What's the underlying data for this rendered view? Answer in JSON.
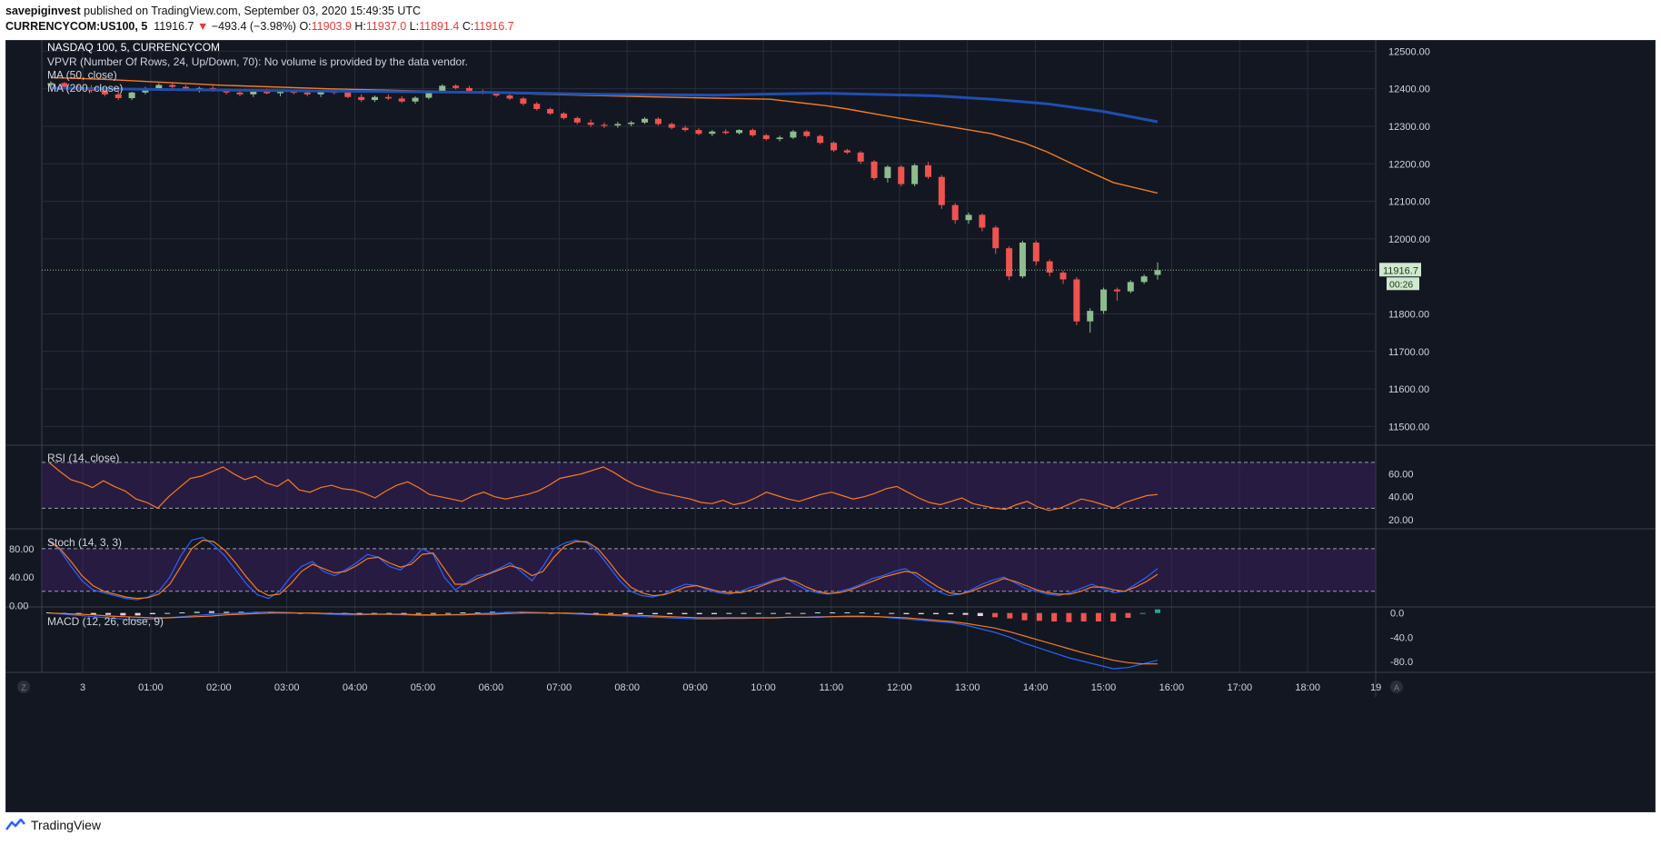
{
  "header": {
    "author": "savepiginvest",
    "published_text": "published on TradingView.com, September 03, 2020 15:49:35 UTC",
    "symbol": "CURRENCYCOM:US100, 5",
    "price": "11916.7",
    "change_arrow": "▼",
    "change": "−493.4 (−3.98%)",
    "o_label": "O:",
    "o_value": "11903.9",
    "h_label": "H:",
    "h_value": "11937.0",
    "l_label": "L:",
    "l_value": "11891.4",
    "c_label": "C:",
    "c_value": "11916.7"
  },
  "footer": {
    "brand": "TradingView",
    "logo_icon": "tradingview-logo-icon"
  },
  "colors": {
    "background": "#131722",
    "grid": "#2a2e39",
    "text": "#d1d4dc",
    "up": "#8fbc8f",
    "down": "#ef5350",
    "ma50": "#f57c20",
    "ma200": "#1e4fb0",
    "rsi_band": "#3b1f5c",
    "stoch_k": "#2962ff",
    "stoch_d": "#f57c20"
  },
  "chart_data": [
    {
      "type": "candlestick",
      "title": "NASDAQ 100, 5, CURRENCYCOM",
      "legend": [
        "VPVR (Number Of Rows, 24, Up/Down, 70): No volume is provided by the data vendor.",
        "MA (50, close)",
        "MA (200, close)"
      ],
      "x_ticks": [
        "3",
        "01:00",
        "02:00",
        "03:00",
        "04:00",
        "05:00",
        "06:00",
        "07:00",
        "08:00",
        "09:00",
        "10:00",
        "11:00",
        "12:00",
        "13:00",
        "14:00",
        "15:00",
        "16:00",
        "17:00",
        "18:00",
        "19"
      ],
      "y_ticks": [
        12500,
        12400,
        12300,
        12200,
        12100,
        12000,
        11800,
        11700,
        11600,
        11500
      ],
      "ylim": [
        11450,
        12530
      ],
      "last_price_label": "11916.7",
      "countdown_label": "00:26",
      "candles": [
        [
          12410,
          12420,
          12405,
          12415
        ],
        [
          12415,
          12418,
          12400,
          12405
        ],
        [
          12405,
          12412,
          12395,
          12400
        ],
        [
          12400,
          12410,
          12390,
          12395
        ],
        [
          12395,
          12400,
          12380,
          12385
        ],
        [
          12385,
          12395,
          12370,
          12375
        ],
        [
          12375,
          12392,
          12370,
          12390
        ],
        [
          12390,
          12405,
          12385,
          12400
        ],
        [
          12400,
          12415,
          12395,
          12410
        ],
        [
          12410,
          12418,
          12400,
          12405
        ],
        [
          12405,
          12410,
          12395,
          12398
        ],
        [
          12398,
          12405,
          12390,
          12402
        ],
        [
          12402,
          12408,
          12392,
          12396
        ],
        [
          12396,
          12400,
          12385,
          12390
        ],
        [
          12390,
          12398,
          12380,
          12385
        ],
        [
          12385,
          12395,
          12378,
          12392
        ],
        [
          12392,
          12400,
          12385,
          12388
        ],
        [
          12388,
          12395,
          12380,
          12392
        ],
        [
          12392,
          12398,
          12385,
          12390
        ],
        [
          12390,
          12396,
          12380,
          12385
        ],
        [
          12385,
          12395,
          12378,
          12392
        ],
        [
          12392,
          12398,
          12385,
          12390
        ],
        [
          12390,
          12394,
          12375,
          12378
        ],
        [
          12378,
          12385,
          12365,
          12370
        ],
        [
          12370,
          12382,
          12365,
          12378
        ],
        [
          12378,
          12385,
          12370,
          12374
        ],
        [
          12374,
          12380,
          12362,
          12366
        ],
        [
          12366,
          12380,
          12360,
          12376
        ],
        [
          12376,
          12392,
          12372,
          12390
        ],
        [
          12390,
          12412,
          12388,
          12408
        ],
        [
          12408,
          12412,
          12398,
          12402
        ],
        [
          12402,
          12408,
          12390,
          12394
        ],
        [
          12394,
          12398,
          12385,
          12388
        ],
        [
          12388,
          12392,
          12378,
          12382
        ],
        [
          12382,
          12388,
          12370,
          12374
        ],
        [
          12374,
          12378,
          12355,
          12360
        ],
        [
          12360,
          12365,
          12342,
          12346
        ],
        [
          12346,
          12350,
          12330,
          12334
        ],
        [
          12334,
          12338,
          12318,
          12322
        ],
        [
          12322,
          12326,
          12305,
          12310
        ],
        [
          12310,
          12318,
          12298,
          12304
        ],
        [
          12304,
          12310,
          12295,
          12302
        ],
        [
          12302,
          12312,
          12296,
          12306
        ],
        [
          12306,
          12314,
          12300,
          12310
        ],
        [
          12310,
          12324,
          12306,
          12320
        ],
        [
          12320,
          12324,
          12302,
          12306
        ],
        [
          12306,
          12310,
          12292,
          12296
        ],
        [
          12296,
          12302,
          12286,
          12290
        ],
        [
          12290,
          12295,
          12276,
          12280
        ],
        [
          12280,
          12290,
          12274,
          12286
        ],
        [
          12286,
          12292,
          12278,
          12282
        ],
        [
          12282,
          12292,
          12278,
          12290
        ],
        [
          12290,
          12294,
          12272,
          12276
        ],
        [
          12276,
          12280,
          12262,
          12266
        ],
        [
          12266,
          12275,
          12260,
          12270
        ],
        [
          12270,
          12290,
          12266,
          12286
        ],
        [
          12286,
          12290,
          12270,
          12274
        ],
        [
          12274,
          12278,
          12252,
          12256
        ],
        [
          12256,
          12260,
          12232,
          12236
        ],
        [
          12236,
          12240,
          12226,
          12230
        ],
        [
          12230,
          12234,
          12200,
          12206
        ],
        [
          12206,
          12210,
          12156,
          12162
        ],
        [
          12162,
          12196,
          12150,
          12192
        ],
        [
          12192,
          12196,
          12140,
          12146
        ],
        [
          12146,
          12200,
          12140,
          12196
        ],
        [
          12196,
          12205,
          12160,
          12165
        ],
        [
          12165,
          12170,
          12080,
          12090
        ],
        [
          12090,
          12095,
          12040,
          12050
        ],
        [
          12050,
          12070,
          12040,
          12064
        ],
        [
          12064,
          12068,
          12020,
          12030
        ],
        [
          12030,
          12035,
          11960,
          11975
        ],
        [
          11975,
          11980,
          11890,
          11900
        ],
        [
          11900,
          11995,
          11895,
          11990
        ],
        [
          11990,
          11995,
          11930,
          11940
        ],
        [
          11940,
          11945,
          11900,
          11910
        ],
        [
          11910,
          11915,
          11880,
          11892
        ],
        [
          11892,
          11898,
          11770,
          11780
        ],
        [
          11780,
          11815,
          11750,
          11808
        ],
        [
          11808,
          11870,
          11800,
          11865
        ],
        [
          11865,
          11870,
          11835,
          11860
        ],
        [
          11860,
          11890,
          11855,
          11885
        ],
        [
          11885,
          11905,
          11880,
          11900
        ],
        [
          11903.9,
          11937,
          11891.4,
          11916.7
        ]
      ],
      "ma50": [
        [
          0,
          12430
        ],
        [
          0.05,
          12425
        ],
        [
          0.15,
          12410
        ],
        [
          0.25,
          12400
        ],
        [
          0.35,
          12393
        ],
        [
          0.45,
          12385
        ],
        [
          0.55,
          12378
        ],
        [
          0.6,
          12375
        ],
        [
          0.65,
          12372
        ],
        [
          0.7,
          12355
        ],
        [
          0.72,
          12346
        ],
        [
          0.75,
          12330
        ],
        [
          0.8,
          12305
        ],
        [
          0.85,
          12280
        ],
        [
          0.88,
          12255
        ],
        [
          0.9,
          12232
        ],
        [
          0.93,
          12190
        ],
        [
          0.96,
          12150
        ],
        [
          1,
          12122
        ]
      ],
      "ma200": [
        [
          0,
          12402
        ],
        [
          0.1,
          12398
        ],
        [
          0.25,
          12394
        ],
        [
          0.4,
          12390
        ],
        [
          0.5,
          12385
        ],
        [
          0.6,
          12383
        ],
        [
          0.65,
          12386
        ],
        [
          0.7,
          12388
        ],
        [
          0.8,
          12381
        ],
        [
          0.85,
          12372
        ],
        [
          0.9,
          12360
        ],
        [
          0.95,
          12340
        ],
        [
          1,
          12312
        ]
      ]
    },
    {
      "type": "line",
      "title": "RSI (14, close)",
      "y_ticks": [
        60.0,
        40.0,
        20.0
      ],
      "ylim": [
        12,
        85
      ],
      "levels": [
        70,
        30
      ],
      "values": [
        70,
        62,
        55,
        52,
        48,
        54,
        49,
        45,
        38,
        35,
        30,
        40,
        48,
        56,
        58,
        62,
        66,
        60,
        55,
        58,
        52,
        49,
        55,
        46,
        44,
        48,
        50,
        47,
        46,
        43,
        39,
        45,
        50,
        53,
        48,
        42,
        40,
        38,
        36,
        41,
        44,
        40,
        38,
        40,
        42,
        45,
        50,
        56,
        58,
        60,
        63,
        66,
        61,
        55,
        50,
        47,
        44,
        42,
        40,
        38,
        35,
        34,
        37,
        33,
        35,
        39,
        44,
        41,
        38,
        36,
        39,
        42,
        44,
        41,
        38,
        40,
        43,
        47,
        49,
        44,
        39,
        35,
        33,
        36,
        39,
        34,
        32,
        30,
        29,
        33,
        36,
        31,
        28,
        30,
        34,
        38,
        36,
        33,
        30,
        35,
        38,
        41,
        42
      ]
    },
    {
      "type": "line",
      "title": "Stoch (14, 3, 3)",
      "y_ticks": [
        80.0,
        40.0,
        0.0
      ],
      "ylim": [
        -2,
        108
      ],
      "levels": [
        80,
        20
      ],
      "k_values": [
        92,
        78,
        55,
        35,
        22,
        18,
        14,
        10,
        8,
        12,
        20,
        40,
        70,
        92,
        96,
        85,
        70,
        50,
        30,
        15,
        10,
        20,
        40,
        55,
        62,
        48,
        42,
        50,
        60,
        72,
        68,
        55,
        50,
        62,
        80,
        72,
        40,
        22,
        32,
        42,
        45,
        52,
        60,
        48,
        35,
        55,
        80,
        88,
        92,
        88,
        75,
        55,
        35,
        20,
        14,
        12,
        16,
        24,
        30,
        28,
        22,
        18,
        16,
        20,
        26,
        30,
        36,
        40,
        30,
        22,
        18,
        16,
        20,
        24,
        30,
        38,
        42,
        48,
        52,
        42,
        30,
        20,
        14,
        16,
        22,
        30,
        36,
        40,
        32,
        24,
        20,
        16,
        14,
        18,
        24,
        30,
        24,
        18,
        20,
        30,
        40,
        52
      ],
      "d_values": [
        90,
        80,
        62,
        42,
        28,
        20,
        16,
        12,
        10,
        11,
        16,
        30,
        55,
        80,
        92,
        90,
        78,
        60,
        40,
        22,
        14,
        16,
        30,
        48,
        58,
        52,
        46,
        48,
        56,
        66,
        68,
        60,
        54,
        58,
        72,
        74,
        52,
        30,
        30,
        38,
        44,
        50,
        56,
        52,
        42,
        48,
        68,
        84,
        90,
        90,
        80,
        62,
        42,
        26,
        18,
        14,
        15,
        20,
        26,
        28,
        24,
        20,
        18,
        18,
        22,
        28,
        34,
        38,
        34,
        26,
        20,
        17,
        18,
        22,
        28,
        34,
        40,
        44,
        48,
        46,
        36,
        26,
        18,
        16,
        20,
        26,
        32,
        38,
        34,
        28,
        22,
        18,
        16,
        16,
        20,
        26,
        26,
        22,
        20,
        26,
        34,
        44
      ]
    },
    {
      "type": "bar",
      "title": "MACD (12, 26, close, 9)",
      "y_ticks": [
        0.0,
        -40.0,
        -80.0
      ],
      "ylim": [
        -98,
        10
      ],
      "macd_values": [
        0,
        -2,
        -4,
        -6,
        -8,
        -10,
        -11,
        -10,
        -8,
        -6,
        -4,
        -2,
        -1,
        0,
        1,
        2,
        1,
        0,
        -1,
        -2,
        -3,
        -3,
        -2,
        -2,
        -3,
        -4,
        -4,
        -3,
        -2,
        -1,
        0,
        1,
        2,
        1,
        0,
        -1,
        -2,
        -3,
        -4,
        -5,
        -6,
        -7,
        -8,
        -9,
        -10,
        -10,
        -9,
        -9,
        -8,
        -8,
        -7,
        -7,
        -6,
        -6,
        -5,
        -5,
        -6,
        -8,
        -10,
        -12,
        -14,
        -16,
        -20,
        -26,
        -32,
        -40,
        -50,
        -58,
        -66,
        -74,
        -80,
        -86,
        -92,
        -90,
        -84,
        -78
      ],
      "signal_values": [
        0,
        -1,
        -2,
        -3,
        -5,
        -6,
        -7,
        -8,
        -8,
        -7,
        -6,
        -5,
        -3,
        -2,
        -1,
        0,
        0,
        0,
        0,
        -1,
        -1,
        -2,
        -2,
        -2,
        -2,
        -3,
        -3,
        -3,
        -3,
        -2,
        -2,
        -1,
        0,
        0,
        0,
        0,
        -1,
        -2,
        -3,
        -3,
        -4,
        -5,
        -6,
        -7,
        -8,
        -8,
        -8,
        -8,
        -8,
        -8,
        -7,
        -7,
        -7,
        -6,
        -6,
        -6,
        -6,
        -7,
        -8,
        -10,
        -12,
        -14,
        -17,
        -21,
        -25,
        -31,
        -38,
        -45,
        -52,
        -59,
        -66,
        -72,
        -78,
        -82,
        -84,
        -84
      ],
      "histogram": [
        1,
        -1,
        -2,
        -3,
        -3,
        -4,
        -4,
        -2,
        0,
        1,
        2,
        3,
        2,
        2,
        2,
        2,
        1,
        0,
        -1,
        -1,
        -2,
        -1,
        0,
        0,
        -1,
        -1,
        -1,
        0,
        1,
        1,
        2,
        2,
        2,
        1,
        0,
        -1,
        -1,
        -1,
        -1,
        -2,
        -2,
        -2,
        -2,
        -2,
        -2,
        -2,
        -1,
        -1,
        0,
        0,
        0,
        0,
        1,
        1,
        1,
        1,
        0,
        -1,
        -2,
        -2,
        -2,
        -2,
        -3,
        -5,
        -7,
        -9,
        -12,
        -13,
        -14,
        -15,
        -14,
        -14,
        -14,
        -8,
        0,
        6
      ]
    }
  ]
}
